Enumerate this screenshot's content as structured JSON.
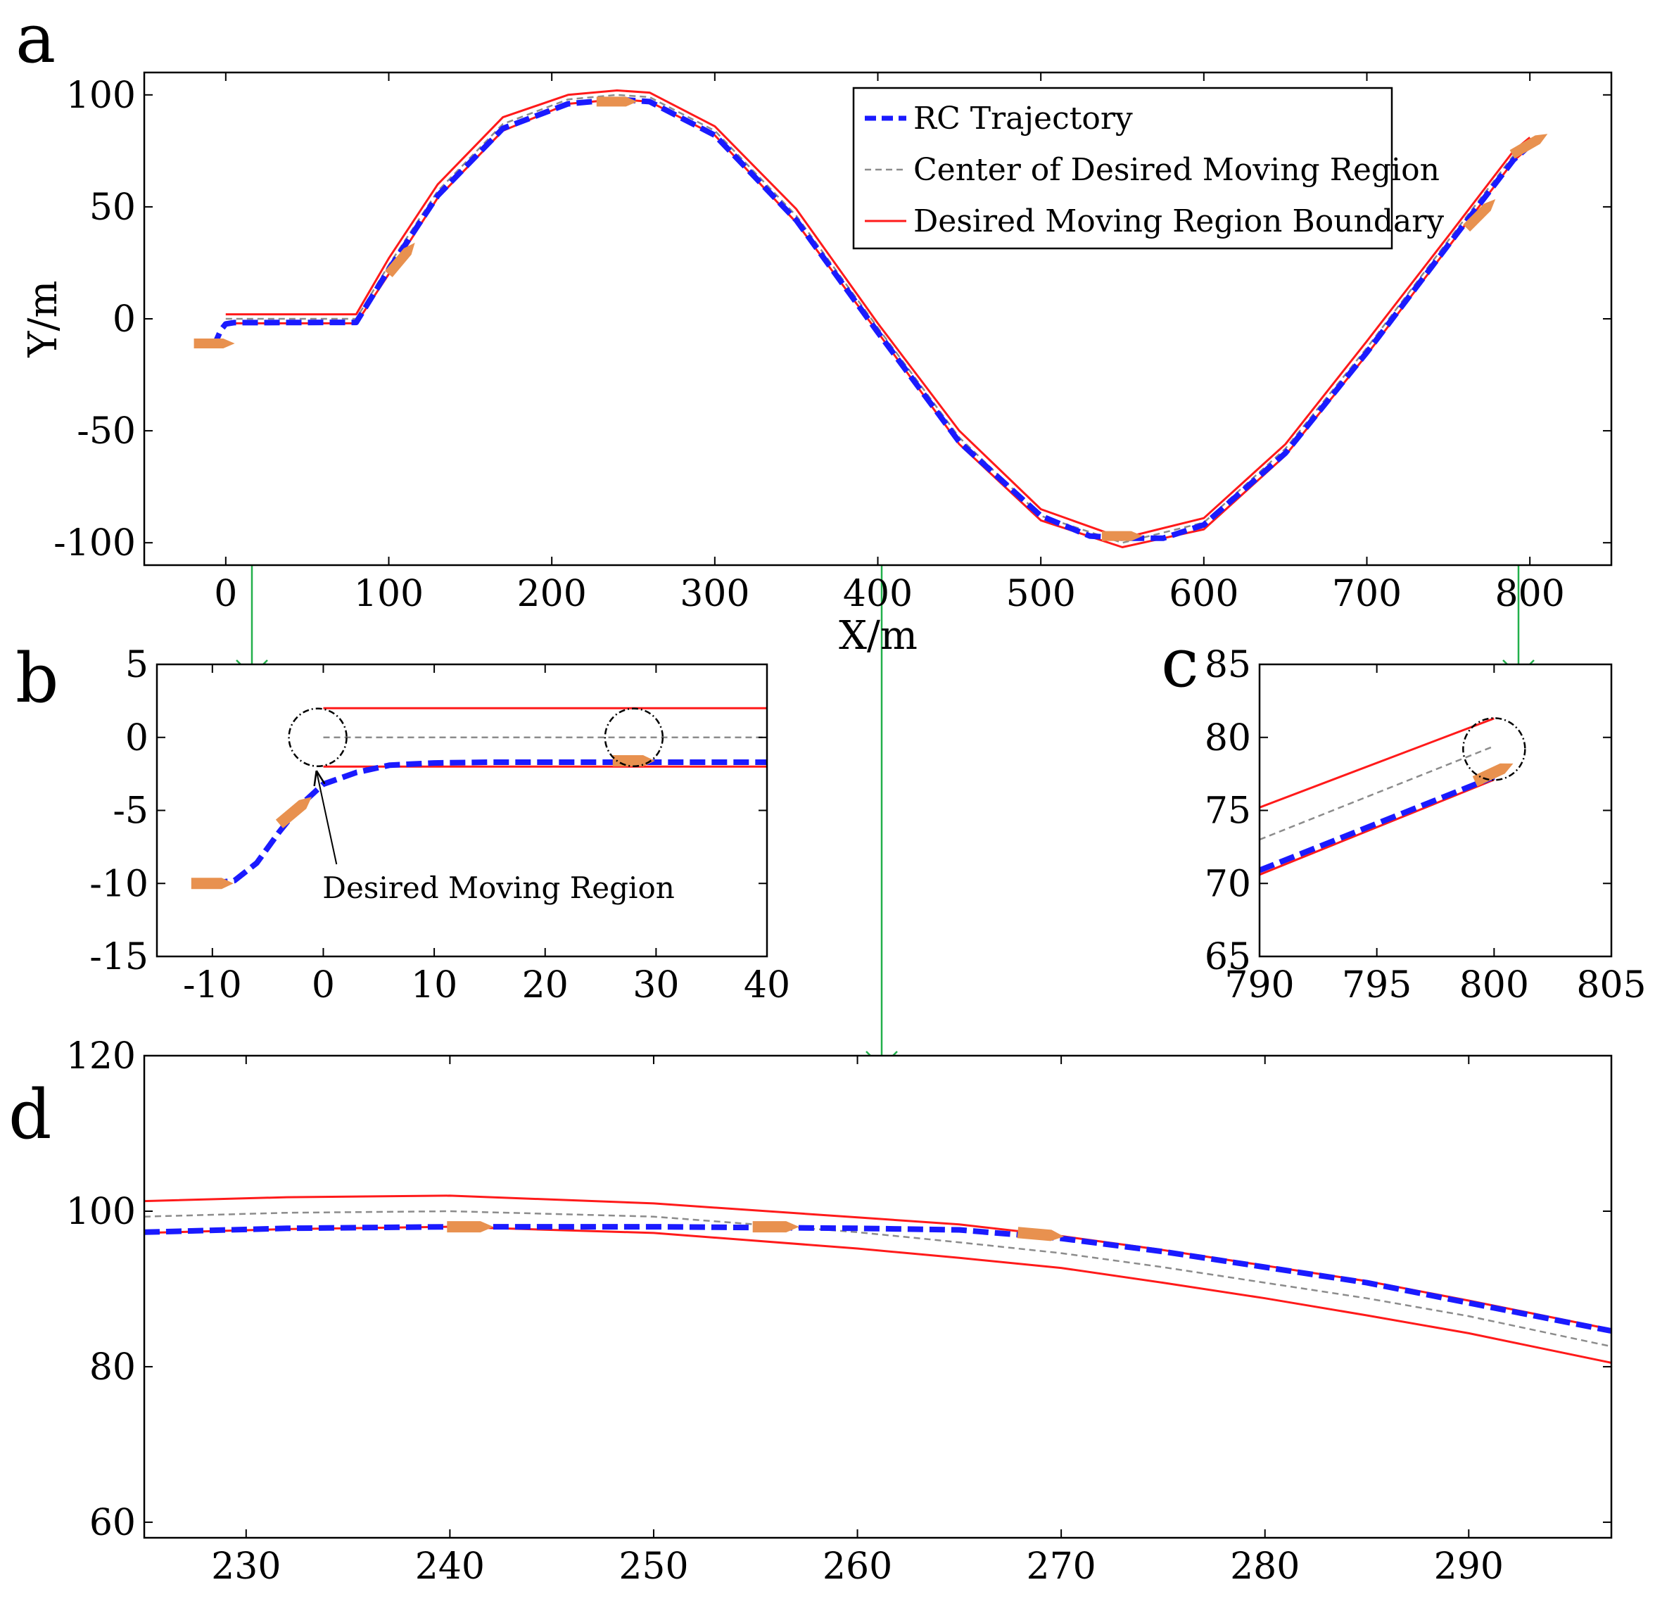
{
  "colors": {
    "rc": "#1a1aff",
    "center": "#8c8c8c",
    "boundary": "#ff1a1a",
    "vehicle": "#e8914f",
    "zoom": "#22b04b",
    "annotation": "#000000"
  },
  "chart_data": [
    {
      "id": "a",
      "panel_label": "a",
      "type": "line",
      "xlabel": "X/m",
      "ylabel": "Y/m",
      "xlim": [
        -50,
        850
      ],
      "ylim": [
        -110,
        110
      ],
      "xticks": [
        0,
        100,
        200,
        300,
        400,
        500,
        600,
        700,
        800
      ],
      "yticks": [
        -100,
        -50,
        0,
        50,
        100
      ],
      "legend": {
        "position": "top-right",
        "entries": [
          "RC Trajectory",
          "Center of Desired Moving Region",
          "Desired Moving Region Boundary"
        ]
      },
      "series": [
        {
          "name": "RC Trajectory",
          "style": "dashed-blue",
          "points": [
            [
              -10,
              -11
            ],
            [
              -6,
              -10
            ],
            [
              -3,
              -5
            ],
            [
              0,
              -2.3
            ],
            [
              5,
              -1.7
            ],
            [
              80,
              -1.6
            ],
            [
              100,
              22
            ],
            [
              130,
              55
            ],
            [
              170,
              85
            ],
            [
              210,
              96
            ],
            [
              240,
              98
            ],
            [
              260,
              97
            ],
            [
              300,
              82
            ],
            [
              350,
              44
            ],
            [
              400,
              -6
            ],
            [
              450,
              -55
            ],
            [
              500,
              -88
            ],
            [
              530,
              -97
            ],
            [
              550,
              -98
            ],
            [
              575,
              -98
            ],
            [
              600,
              -92
            ],
            [
              650,
              -60
            ],
            [
              700,
              -15
            ],
            [
              750,
              33
            ],
            [
              790,
              71
            ],
            [
              800,
              77.5
            ]
          ]
        },
        {
          "name": "Center of Desired Moving Region",
          "style": "dashed-gray",
          "points": [
            [
              0,
              0
            ],
            [
              80,
              0
            ],
            [
              100,
              24
            ],
            [
              130,
              57
            ],
            [
              170,
              87
            ],
            [
              210,
              98
            ],
            [
              240,
              100
            ],
            [
              260,
              99
            ],
            [
              300,
              84
            ],
            [
              350,
              46
            ],
            [
              400,
              -4
            ],
            [
              450,
              -53
            ],
            [
              500,
              -88
            ],
            [
              550,
              -100
            ],
            [
              600,
              -91
            ],
            [
              650,
              -58
            ],
            [
              700,
              -13
            ],
            [
              750,
              35
            ],
            [
              790,
              73
            ],
            [
              800,
              79.5
            ]
          ]
        },
        {
          "name": "Desired Moving Region Boundary",
          "style": "solid-red",
          "points": [
            [
              0,
              2
            ],
            [
              80,
              2
            ],
            [
              100,
              27
            ],
            [
              130,
              60
            ],
            [
              170,
              90
            ],
            [
              210,
              100
            ],
            [
              240,
              102
            ],
            [
              260,
              101
            ],
            [
              300,
              86
            ],
            [
              350,
              49
            ],
            [
              400,
              -2
            ],
            [
              450,
              -50
            ],
            [
              500,
              -85
            ],
            [
              550,
              -98
            ],
            [
              600,
              -89
            ],
            [
              650,
              -56
            ],
            [
              700,
              -10
            ],
            [
              750,
              37
            ],
            [
              790,
              75
            ],
            [
              800,
              81
            ]
          ]
        },
        {
          "name": "Desired Moving Region Boundary",
          "style": "solid-red",
          "points": [
            [
              0,
              -2
            ],
            [
              80,
              -2
            ],
            [
              100,
              20
            ],
            [
              130,
              54
            ],
            [
              170,
              84
            ],
            [
              210,
              96
            ],
            [
              240,
              98
            ],
            [
              260,
              97
            ],
            [
              300,
              82
            ],
            [
              350,
              43
            ],
            [
              400,
              -6
            ],
            [
              450,
              -56
            ],
            [
              500,
              -90
            ],
            [
              550,
              -102
            ],
            [
              600,
              -94
            ],
            [
              650,
              -61
            ],
            [
              700,
              -16
            ],
            [
              750,
              32
            ],
            [
              790,
              70.5
            ],
            [
              800,
              77
            ]
          ]
        }
      ],
      "vehicles": [
        [
          -7,
          -11,
          0
        ],
        [
          108,
          27,
          50
        ],
        [
          240,
          97,
          0
        ],
        [
          550,
          -97,
          0
        ],
        [
          770,
          47,
          45
        ],
        [
          800,
          78,
          30
        ]
      ],
      "zoom_boxes": [
        {
          "x": [
            -30,
            52
          ],
          "y": [
            -15,
            12
          ]
        },
        {
          "x": [
            200,
            281
          ],
          "y": [
            86,
            106
          ]
        },
        {
          "x": [
            763,
            818
          ],
          "y": [
            64,
            91
          ]
        }
      ]
    },
    {
      "id": "b",
      "panel_label": "b",
      "type": "line",
      "xlim": [
        -15,
        40
      ],
      "ylim": [
        -15,
        5
      ],
      "xticks": [
        -10,
        0,
        10,
        20,
        30,
        40
      ],
      "yticks": [
        -15,
        -10,
        -5,
        0,
        5
      ],
      "series": [
        {
          "name": "RC Trajectory",
          "style": "dashed-blue",
          "points": [
            [
              -10,
              -10
            ],
            [
              -8,
              -9.8
            ],
            [
              -6,
              -8.6
            ],
            [
              -4,
              -6.5
            ],
            [
              -2,
              -4.6
            ],
            [
              0,
              -3.2
            ],
            [
              3,
              -2.4
            ],
            [
              6,
              -1.9
            ],
            [
              10,
              -1.75
            ],
            [
              15,
              -1.7
            ],
            [
              40,
              -1.7
            ]
          ]
        },
        {
          "name": "Center of Desired Moving Region",
          "style": "dashed-gray",
          "points": [
            [
              0,
              0
            ],
            [
              40,
              0
            ]
          ]
        },
        {
          "name": "Desired Moving Region Boundary",
          "style": "solid-red",
          "points": [
            [
              0,
              2
            ],
            [
              40,
              2
            ]
          ]
        },
        {
          "name": "Desired Moving Region Boundary",
          "style": "solid-red",
          "points": [
            [
              0,
              -2
            ],
            [
              40,
              -2
            ]
          ]
        }
      ],
      "vehicles": [
        [
          -10,
          -10,
          0
        ],
        [
          -2.5,
          -5,
          40
        ],
        [
          28,
          -1.6,
          0
        ]
      ],
      "circles": [
        [
          -0.5,
          0
        ],
        [
          28,
          0
        ]
      ],
      "annotation": {
        "text": "Desired Moving Region",
        "xy": [
          -1,
          -1.8
        ],
        "text_xy": [
          5,
          -11
        ]
      }
    },
    {
      "id": "c",
      "panel_label": "c",
      "type": "line",
      "xlim": [
        790,
        805
      ],
      "ylim": [
        65,
        85
      ],
      "xticks": [
        790,
        795,
        800,
        805
      ],
      "yticks": [
        65,
        70,
        75,
        80,
        85
      ],
      "series": [
        {
          "name": "RC Trajectory",
          "style": "dashed-blue",
          "points": [
            [
              790,
              70.9
            ],
            [
              800,
              77.3
            ]
          ]
        },
        {
          "name": "Center of Desired Moving Region",
          "style": "dashed-gray",
          "points": [
            [
              790,
              73
            ],
            [
              800,
              79.4
            ]
          ]
        },
        {
          "name": "Desired Moving Region Boundary",
          "style": "solid-red",
          "points": [
            [
              790,
              75.2
            ],
            [
              800,
              81.3
            ]
          ]
        },
        {
          "name": "Desired Moving Region Boundary",
          "style": "solid-red",
          "points": [
            [
              790,
              70.6
            ],
            [
              800,
              77.1
            ]
          ]
        }
      ],
      "vehicles": [
        [
          800,
          77.6,
          25
        ]
      ],
      "circles": [
        [
          800,
          79.2
        ]
      ]
    },
    {
      "id": "d",
      "panel_label": "d",
      "type": "line",
      "xlim": [
        225,
        297
      ],
      "ylim": [
        58,
        120
      ],
      "xticks": [
        230,
        240,
        250,
        260,
        270,
        280,
        290
      ],
      "yticks": [
        60,
        80,
        100,
        120
      ],
      "series": [
        {
          "name": "RC Trajectory",
          "style": "dashed-blue",
          "points": [
            [
              225,
              97.3
            ],
            [
              232,
              97.8
            ],
            [
              240,
              98
            ],
            [
              250,
              98
            ],
            [
              260,
              97.8
            ],
            [
              265,
              97.6
            ],
            [
              270,
              96.5
            ],
            [
              275,
              94.8
            ],
            [
              280,
              92.8
            ],
            [
              285,
              90.8
            ],
            [
              290,
              88.2
            ],
            [
              297,
              84.6
            ]
          ]
        },
        {
          "name": "Center of Desired Moving Region",
          "style": "dashed-gray",
          "points": [
            [
              225,
              99.3
            ],
            [
              232,
              99.8
            ],
            [
              240,
              100
            ],
            [
              250,
              99.3
            ],
            [
              260,
              97.3
            ],
            [
              265,
              96
            ],
            [
              270,
              94.6
            ],
            [
              275,
              92.8
            ],
            [
              280,
              90.8
            ],
            [
              285,
              88.8
            ],
            [
              290,
              86.5
            ],
            [
              297,
              82.6
            ]
          ]
        },
        {
          "name": "Desired Moving Region Boundary",
          "style": "solid-red",
          "points": [
            [
              225,
              101.3
            ],
            [
              232,
              101.8
            ],
            [
              240,
              102
            ],
            [
              250,
              101
            ],
            [
              260,
              99.2
            ],
            [
              265,
              98.3
            ],
            [
              270,
              96.8
            ],
            [
              275,
              95
            ],
            [
              280,
              93
            ],
            [
              285,
              91
            ],
            [
              290,
              88.5
            ],
            [
              297,
              84.8
            ]
          ]
        },
        {
          "name": "Desired Moving Region Boundary",
          "style": "solid-red",
          "points": [
            [
              225,
              97.2
            ],
            [
              232,
              97.7
            ],
            [
              240,
              98
            ],
            [
              250,
              97.2
            ],
            [
              260,
              95.2
            ],
            [
              265,
              94
            ],
            [
              270,
              92.7
            ],
            [
              275,
              90.8
            ],
            [
              280,
              88.8
            ],
            [
              285,
              86.6
            ],
            [
              290,
              84.3
            ],
            [
              297,
              80.5
            ]
          ]
        }
      ],
      "vehicles": [
        [
          241,
          98,
          0
        ],
        [
          256,
          98,
          0
        ],
        [
          269,
          97,
          -5
        ]
      ]
    }
  ]
}
